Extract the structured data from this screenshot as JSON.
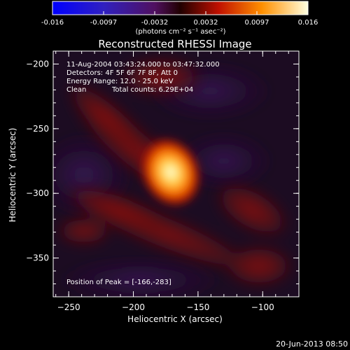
{
  "title": "Reconstructed RHESSI Image",
  "colorbar": {
    "ticks": [
      "-0.016",
      "-0.0097",
      "-0.0032",
      "0.0032",
      "0.0097",
      "0.016"
    ],
    "units_line": "(photons cm⁻² s⁻¹ asec⁻²)"
  },
  "info": {
    "time_range": "11-Aug-2004 03:43:24.000 to 03:47:32.000",
    "detectors": "Detectors: 4F 5F 6F 7F 8F, Att 0",
    "energy": "Energy Range: 12.0 - 25.0 keV",
    "method": "Clean",
    "counts": "Total counts: 6.29E+04",
    "peak": "Position of Peak = [-166,-283]"
  },
  "axes": {
    "xlabel": "Heliocentric X (arcsec)",
    "ylabel": "Heliocentric Y (arcsec)",
    "xticks": [
      "-250",
      "-200",
      "-150",
      "-100"
    ],
    "yticks": [
      "-200",
      "-250",
      "-300",
      "-350"
    ],
    "xrange": [
      -262,
      -72
    ],
    "yrange": [
      -380,
      -190
    ]
  },
  "timestamp": "20-Jun-2013 08:50"
}
